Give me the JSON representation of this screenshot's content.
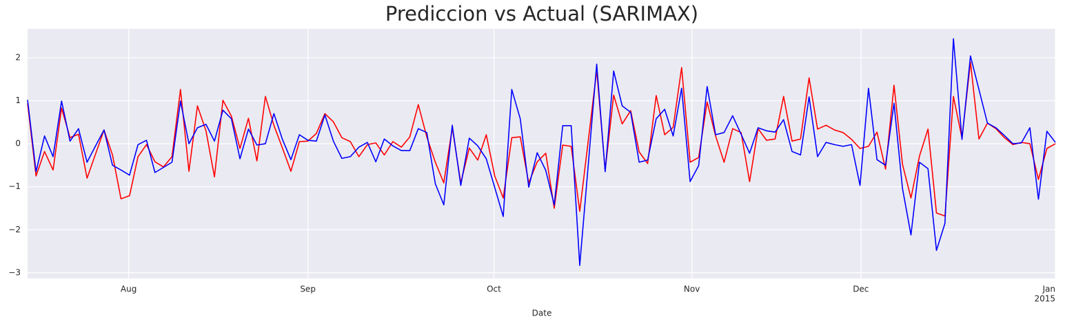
{
  "chart_data": {
    "type": "line",
    "title": "Prediccion vs Actual (SARIMAX)",
    "xlabel": "Date",
    "x": [
      0,
      1,
      2,
      3,
      4,
      5,
      6,
      7,
      8,
      9,
      10,
      11,
      12,
      13,
      14,
      15,
      16,
      17,
      18,
      19,
      20,
      21,
      22,
      23,
      24,
      25,
      26,
      27,
      28,
      29,
      30,
      31,
      32,
      33,
      34,
      35,
      36,
      37,
      38,
      39,
      40,
      41,
      42,
      43,
      44,
      45,
      46,
      47,
      48,
      49,
      50,
      51,
      52,
      53,
      54,
      55,
      56,
      57,
      58,
      59,
      60,
      61,
      62,
      63,
      64,
      65,
      66,
      67,
      68,
      69,
      70,
      71,
      72,
      73,
      74,
      75,
      76,
      77,
      78,
      79,
      80,
      81,
      82,
      83,
      84,
      85,
      86,
      87,
      88,
      89,
      90,
      91,
      92,
      93,
      94,
      95,
      96,
      97,
      98,
      99,
      100,
      101,
      102,
      103,
      104,
      105,
      106,
      107,
      108,
      109,
      110,
      111,
      112,
      113,
      114,
      115,
      116,
      117,
      118,
      119,
      120,
      121
    ],
    "series": [
      {
        "color": "#ff0000",
        "values": [
          0.94,
          -0.75,
          -0.18,
          -0.61,
          0.83,
          0.14,
          0.22,
          -0.8,
          -0.24,
          0.32,
          -0.26,
          -1.28,
          -1.21,
          -0.3,
          -0.02,
          -0.42,
          -0.54,
          -0.3,
          1.26,
          -0.64,
          0.88,
          0.3,
          -0.77,
          1.01,
          0.64,
          -0.11,
          0.59,
          -0.4,
          1.1,
          0.43,
          -0.1,
          -0.64,
          0.05,
          0.06,
          0.24,
          0.7,
          0.51,
          0.14,
          0.05,
          -0.3,
          -0.02,
          0.02,
          -0.26,
          0.05,
          -0.08,
          0.16,
          0.91,
          0.16,
          -0.43,
          -0.91,
          0.37,
          -0.91,
          -0.1,
          -0.38,
          0.21,
          -0.75,
          -1.26,
          0.14,
          0.16,
          -0.91,
          -0.42,
          -0.22,
          -1.5,
          -0.03,
          -0.06,
          -1.57,
          0.06,
          1.71,
          -0.62,
          1.13,
          0.46,
          0.77,
          -0.19,
          -0.46,
          1.12,
          0.21,
          0.38,
          1.77,
          -0.43,
          -0.32,
          0.97,
          0.18,
          -0.43,
          0.35,
          0.26,
          -0.88,
          0.35,
          0.08,
          0.11,
          1.1,
          0.06,
          0.11,
          1.53,
          0.34,
          0.43,
          0.32,
          0.26,
          0.1,
          -0.11,
          -0.06,
          0.27,
          -0.59,
          1.36,
          -0.48,
          -1.26,
          -0.29,
          0.34,
          -1.61,
          -1.68,
          1.1,
          0.13,
          1.9,
          0.11,
          0.48,
          0.35,
          0.14,
          -0.02,
          0.03,
          0.0,
          -0.83,
          -0.11,
          0.0
        ]
      },
      {
        "color": "#0000ff",
        "values": [
          1.02,
          -0.65,
          0.18,
          -0.3,
          0.99,
          0.06,
          0.35,
          -0.43,
          -0.05,
          0.32,
          -0.5,
          -0.61,
          -0.73,
          -0.02,
          0.08,
          -0.67,
          -0.55,
          -0.43,
          0.99,
          0.0,
          0.37,
          0.45,
          0.06,
          0.78,
          0.58,
          -0.35,
          0.34,
          -0.03,
          0.0,
          0.7,
          0.1,
          -0.37,
          0.21,
          0.08,
          0.06,
          0.67,
          0.06,
          -0.34,
          -0.3,
          -0.08,
          0.03,
          -0.42,
          0.11,
          -0.05,
          -0.16,
          -0.16,
          0.35,
          0.26,
          -0.93,
          -1.42,
          0.43,
          -0.97,
          0.13,
          -0.05,
          -0.35,
          -1.02,
          -1.69,
          1.26,
          0.58,
          -1.01,
          -0.21,
          -0.62,
          -1.42,
          0.42,
          0.42,
          -2.83,
          -0.5,
          1.85,
          -0.65,
          1.69,
          0.88,
          0.73,
          -0.43,
          -0.38,
          0.58,
          0.8,
          0.18,
          1.29,
          -0.88,
          -0.51,
          1.33,
          0.21,
          0.26,
          0.65,
          0.22,
          -0.22,
          0.37,
          0.3,
          0.27,
          0.56,
          -0.18,
          -0.26,
          1.09,
          -0.3,
          0.03,
          -0.02,
          -0.06,
          -0.02,
          -0.97,
          1.29,
          -0.37,
          -0.5,
          0.94,
          -1.04,
          -2.12,
          -0.43,
          -0.58,
          -2.48,
          -1.85,
          2.44,
          0.1,
          2.04,
          1.26,
          0.48,
          0.37,
          0.19,
          0.0,
          0.02,
          0.37,
          -1.29,
          0.29,
          0.03
        ]
      }
    ],
    "xlim": [
      0,
      121
    ],
    "xticks": [
      {
        "value": 11.9,
        "label": "Aug"
      },
      {
        "value": 33,
        "label": "Sep"
      },
      {
        "value": 54.9,
        "label": "Oct"
      },
      {
        "value": 78.2,
        "label": "Nov"
      },
      {
        "value": 98.1,
        "label": "Dec"
      },
      {
        "value": 121,
        "label": "Jan"
      }
    ],
    "xtick_sublabel": "2015",
    "ylim": [
      -3.13,
      2.67
    ],
    "yticks": [
      {
        "value": -3,
        "label": "−3"
      },
      {
        "value": -2,
        "label": "−2"
      },
      {
        "value": -1,
        "label": "−1"
      },
      0,
      1,
      2
    ],
    "grid": true
  }
}
